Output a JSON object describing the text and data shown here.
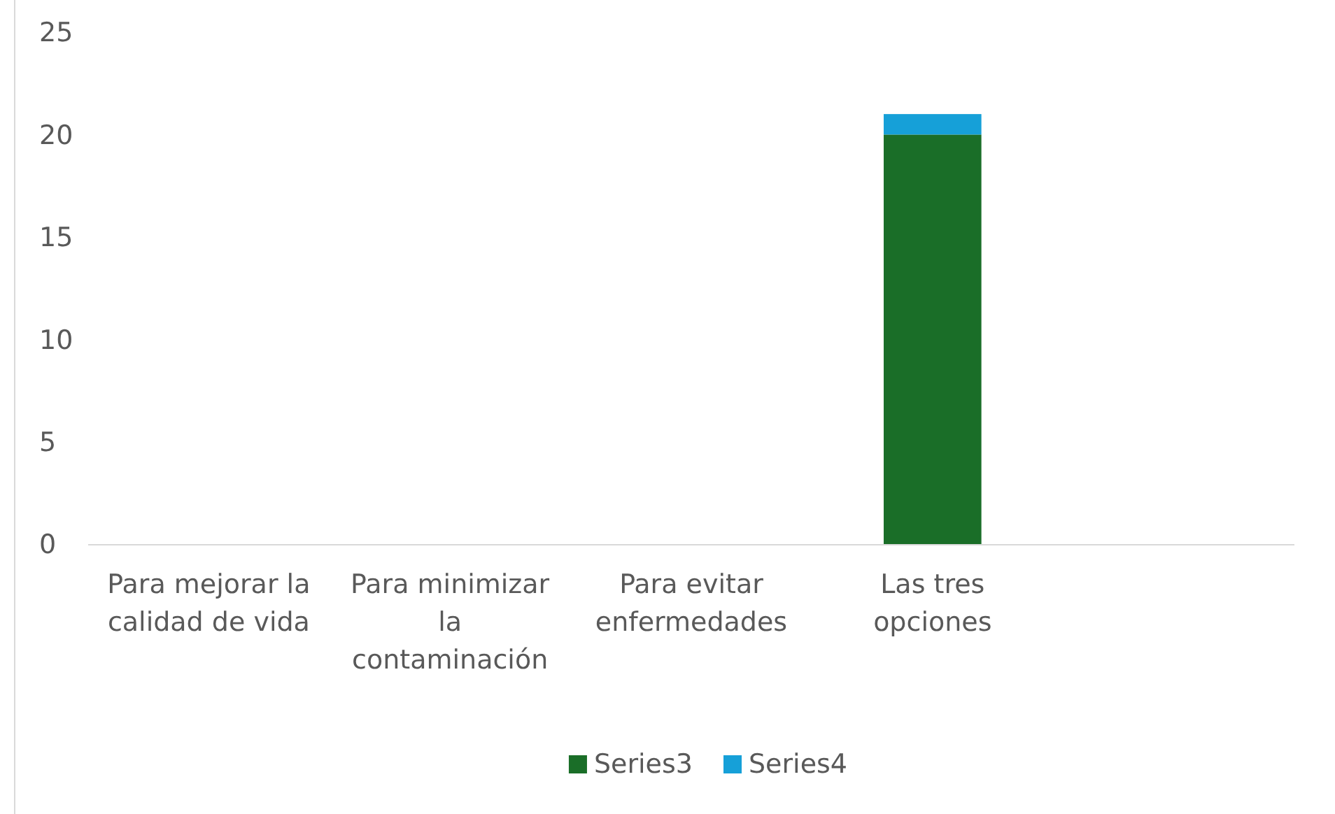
{
  "chart_data": {
    "type": "bar",
    "stacked": true,
    "categories": [
      "Para mejorar la calidad de vida",
      "Para minimizar la contaminación",
      "Para evitar enfermedades",
      "Las tres opciones",
      null
    ],
    "series": [
      {
        "name": "Series3",
        "color": "#1a6e28",
        "values": [
          0,
          0,
          0,
          20,
          0
        ]
      },
      {
        "name": "Series4",
        "color": "#16a0d8",
        "values": [
          0,
          0,
          0,
          1,
          0
        ]
      }
    ],
    "ylim": [
      0,
      25
    ],
    "yticks": [
      0,
      5,
      10,
      15,
      20,
      25
    ],
    "grid": false,
    "legend": "bottom"
  }
}
